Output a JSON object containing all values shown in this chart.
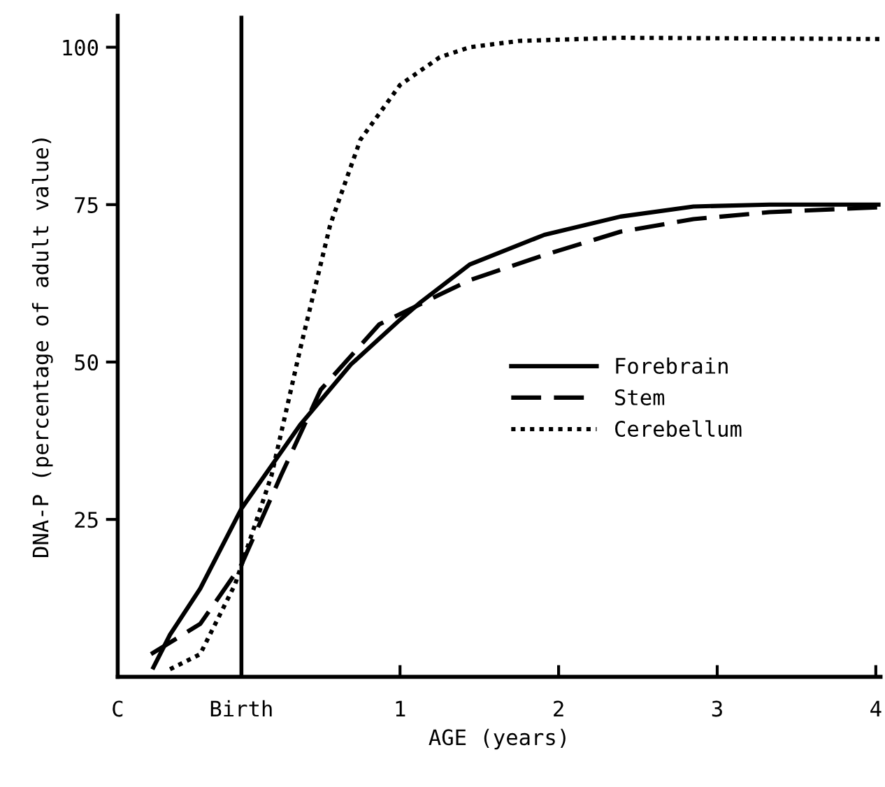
{
  "chart_data": {
    "type": "line",
    "xlabel": "AGE (years)",
    "ylabel": "DNA-P (percentage of adult value)",
    "xlim": [
      -0.78,
      4.03
    ],
    "ylim": [
      0,
      105
    ],
    "xticks": [
      {
        "value": -0.78,
        "label": "C"
      },
      {
        "value": 0,
        "label": "Birth"
      },
      1,
      2,
      3,
      4
    ],
    "yticks": [
      25,
      50,
      75,
      100
    ],
    "grid": false,
    "legend": "right",
    "marker": "none",
    "ref_lines": [
      {
        "axis": "x",
        "value": 0,
        "label": null,
        "color": "#000000",
        "line_style": "solid"
      }
    ],
    "series": [
      {
        "name": "Forebrain",
        "color": "#000000",
        "line_style": "solid",
        "x": [
          -0.555,
          -0.45,
          -0.26,
          0,
          0.37,
          0.69,
          1.0,
          1.13,
          1.44,
          1.91,
          2.39,
          2.85,
          3.33,
          4.03
        ],
        "values": [
          1.5,
          6.7,
          14,
          26.7,
          40,
          49.6,
          56.7,
          59.5,
          65.5,
          70.2,
          73.1,
          74.7,
          75,
          75
        ]
      },
      {
        "name": "Stem",
        "color": "#000000",
        "line_style": "dashed",
        "x": [
          -0.57,
          -0.26,
          0,
          0.25,
          0.5,
          0.87,
          1.25,
          1.44,
          1.91,
          2.39,
          2.85,
          3.33,
          4.03
        ],
        "values": [
          3.6,
          8.4,
          17.8,
          32,
          45.6,
          56,
          60.7,
          63,
          67,
          70.7,
          72.7,
          73.8,
          74.6
        ]
      },
      {
        "name": "Cerebellum",
        "color": "#000000",
        "line_style": "dotted",
        "x": [
          -0.45,
          -0.26,
          -0.04,
          0.19,
          0.37,
          0.56,
          0.75,
          1.0,
          1.25,
          1.44,
          1.75,
          2.39,
          4.03
        ],
        "values": [
          1.2,
          3.6,
          14.7,
          32,
          52,
          71.8,
          85.3,
          94,
          98.4,
          100,
          101,
          101.5,
          101.3
        ]
      }
    ]
  }
}
